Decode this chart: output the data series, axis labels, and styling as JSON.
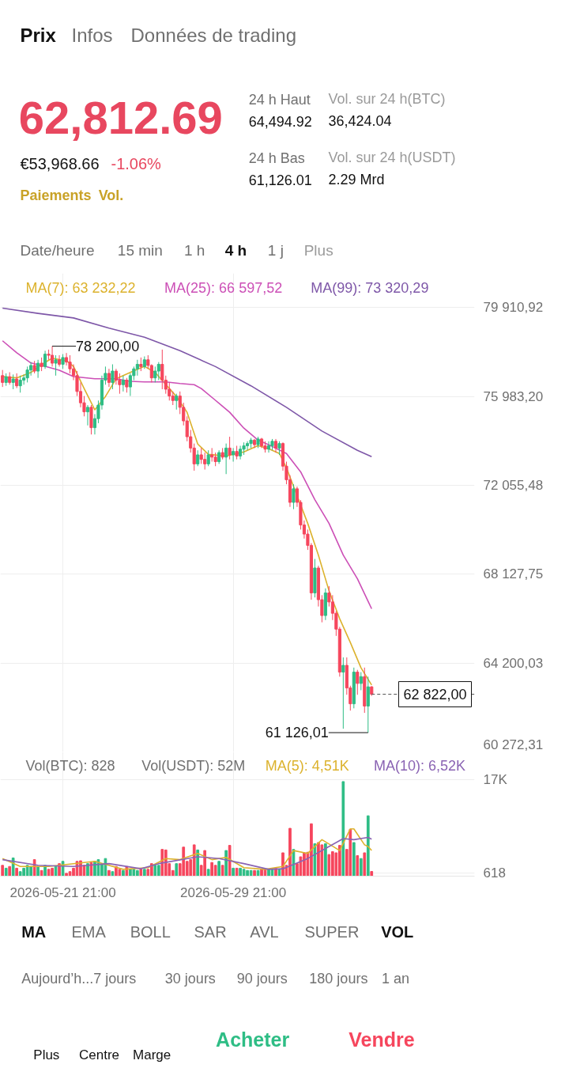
{
  "chart_data": [
    {
      "type": "other",
      "annotations": [
        "Prix",
        "Infos",
        "Données de trading",
        "62,812.69",
        "€53,968.66",
        "-1.06%",
        "Paiements",
        "Vol.",
        "24 h Haut",
        "64,494.92",
        "Vol. sur 24 h(BTC)",
        "36,424.04",
        "24 h Bas",
        "61,126.01",
        "Vol. sur 24 h(USDT)",
        "2.29 Mrd",
        "Date/heure",
        "15 min",
        "1 h",
        "4 h",
        "1 j",
        "Plus"
      ]
    },
    {
      "type": "candlestick",
      "x": [
        "2026-05-19T01:00",
        "2026-05-19T05:00",
        "2026-05-19T09:00",
        "2026-05-19T13:00",
        "2026-05-19T17:00",
        "2026-05-19T21:00",
        "2026-05-20T01:00",
        "2026-05-20T05:00",
        "2026-05-20T09:00",
        "2026-05-20T13:00",
        "2026-05-20T17:00",
        "2026-05-20T21:00",
        "2026-05-21T01:00",
        "2026-05-21T05:00",
        "2026-05-21T09:00",
        "2026-05-21T13:00",
        "2026-05-21T17:00",
        "2026-05-21T21:00",
        "2026-05-22T01:00",
        "2026-05-22T05:00",
        "2026-05-22T09:00",
        "2026-05-22T13:00",
        "2026-05-22T17:00",
        "2026-05-22T21:00",
        "2026-05-23T01:00",
        "2026-05-23T05:00",
        "2026-05-23T09:00",
        "2026-05-23T13:00",
        "2026-05-23T17:00",
        "2026-05-23T21:00",
        "2026-05-24T01:00",
        "2026-05-24T05:00",
        "2026-05-24T09:00",
        "2026-05-24T13:00",
        "2026-05-24T17:00",
        "2026-05-24T21:00",
        "2026-05-25T01:00",
        "2026-05-25T05:00",
        "2026-05-25T09:00",
        "2026-05-25T13:00",
        "2026-05-25T17:00",
        "2026-05-25T21:00",
        "2026-05-26T01:00",
        "2026-05-26T05:00",
        "2026-05-26T09:00",
        "2026-05-26T13:00",
        "2026-05-26T17:00",
        "2026-05-26T21:00",
        "2026-05-27T01:00",
        "2026-05-27T05:00",
        "2026-05-27T09:00",
        "2026-05-27T13:00",
        "2026-05-27T17:00",
        "2026-05-27T21:00",
        "2026-05-28T01:00",
        "2026-05-28T05:00",
        "2026-05-28T09:00",
        "2026-05-28T13:00",
        "2026-05-28T17:00",
        "2026-05-28T21:00",
        "2026-05-29T01:00",
        "2026-05-29T05:00",
        "2026-05-29T09:00",
        "2026-05-29T13:00",
        "2026-05-29T17:00",
        "2026-05-29T21:00",
        "2026-05-30T01:00",
        "2026-05-30T05:00",
        "2026-05-30T09:00",
        "2026-05-30T13:00",
        "2026-05-30T17:00",
        "2026-05-30T21:00",
        "2026-05-31T01:00",
        "2026-05-31T05:00",
        "2026-05-31T09:00",
        "2026-05-31T13:00",
        "2026-05-31T17:00",
        "2026-05-31T21:00",
        "2026-06-01T01:00",
        "2026-06-01T05:00",
        "2026-06-01T09:00",
        "2026-06-01T13:00",
        "2026-06-01T17:00",
        "2026-06-01T21:00",
        "2026-06-02T01:00",
        "2026-06-02T05:00",
        "2026-06-02T09:00",
        "2026-06-02T13:00",
        "2026-06-02T17:00",
        "2026-06-02T21:00",
        "2026-06-03T01:00",
        "2026-06-03T05:00",
        "2026-06-03T09:00",
        "2026-06-03T13:00",
        "2026-06-03T17:00",
        "2026-06-03T21:00",
        "2026-06-04T01:00",
        "2026-06-04T05:00",
        "2026-06-04T09:00",
        "2026-06-04T13:00",
        "2026-06-04T17:00",
        "2026-06-04T21:00",
        "2026-06-05T01:00",
        "2026-06-05T05:00",
        "2026-06-05T09:00"
      ],
      "ohlc": [
        [
          76900,
          77150,
          76400,
          76600
        ],
        [
          76600,
          77000,
          76450,
          76850
        ],
        [
          76850,
          77050,
          76500,
          76600
        ],
        [
          76600,
          76950,
          76300,
          76750
        ],
        [
          76750,
          77000,
          76350,
          76450
        ],
        [
          76450,
          76900,
          76150,
          76700
        ],
        [
          76700,
          76950,
          76500,
          76800
        ],
        [
          76800,
          77300,
          76600,
          77150
        ],
        [
          77150,
          77500,
          76900,
          77350
        ],
        [
          77350,
          77550,
          77000,
          77100
        ],
        [
          77100,
          77600,
          76800,
          77450
        ],
        [
          77450,
          77700,
          77100,
          77300
        ],
        [
          77300,
          78000,
          77200,
          77850
        ],
        [
          77850,
          78050,
          77600,
          77800
        ],
        [
          77800,
          78200,
          77300,
          77450
        ],
        [
          77450,
          77800,
          76900,
          77600
        ],
        [
          77600,
          77800,
          77300,
          77400
        ],
        [
          77400,
          77850,
          77200,
          77700
        ],
        [
          77700,
          77900,
          77350,
          77500
        ],
        [
          77500,
          77800,
          77000,
          77200
        ],
        [
          77200,
          77400,
          76700,
          76900
        ],
        [
          76900,
          77100,
          76000,
          76200
        ],
        [
          76200,
          76600,
          75500,
          75700
        ],
        [
          75700,
          76000,
          75100,
          75300
        ],
        [
          75300,
          75600,
          74700,
          75500
        ],
        [
          75500,
          75600,
          74300,
          74600
        ],
        [
          74600,
          75200,
          74300,
          75000
        ],
        [
          75000,
          75800,
          74800,
          75600
        ],
        [
          75600,
          76900,
          75400,
          76700
        ],
        [
          76700,
          77300,
          76500,
          77000
        ],
        [
          77000,
          77200,
          76400,
          76600
        ],
        [
          76600,
          77400,
          76300,
          77100
        ],
        [
          77100,
          77200,
          76500,
          76700
        ],
        [
          76700,
          77000,
          76100,
          76500
        ],
        [
          76500,
          76900,
          76200,
          76700
        ],
        [
          76700,
          76800,
          76150,
          76400
        ],
        [
          76400,
          77000,
          76000,
          76900
        ],
        [
          76900,
          77300,
          76700,
          77200
        ],
        [
          77200,
          77600,
          76900,
          77400
        ],
        [
          77400,
          77700,
          77100,
          77300
        ],
        [
          77300,
          77750,
          77200,
          77600
        ],
        [
          77600,
          77800,
          77200,
          77350
        ],
        [
          77350,
          77400,
          76600,
          76800
        ],
        [
          76800,
          77300,
          76600,
          77100
        ],
        [
          77100,
          77500,
          76700,
          77400
        ],
        [
          77400,
          78050,
          76300,
          76700
        ],
        [
          76700,
          76900,
          76100,
          76300
        ],
        [
          76300,
          76600,
          75800,
          76000
        ],
        [
          76000,
          76200,
          75600,
          75800
        ],
        [
          75800,
          76100,
          75400,
          76000
        ],
        [
          76000,
          76200,
          75200,
          75500
        ],
        [
          75500,
          75700,
          74700,
          74900
        ],
        [
          74900,
          75100,
          74000,
          74200
        ],
        [
          74200,
          74500,
          73500,
          73700
        ],
        [
          73700,
          73900,
          72700,
          73000
        ],
        [
          73000,
          73600,
          72900,
          73400
        ],
        [
          73400,
          73700,
          73000,
          73200
        ],
        [
          73200,
          73500,
          72750,
          73000
        ],
        [
          73000,
          73600,
          72900,
          73400
        ],
        [
          73400,
          73700,
          73100,
          73300
        ],
        [
          73300,
          73500,
          72900,
          73100
        ],
        [
          73100,
          73600,
          73000,
          73500
        ],
        [
          73500,
          73700,
          73200,
          73300
        ],
        [
          73300,
          73900,
          72550,
          73700
        ],
        [
          73700,
          74200,
          73200,
          73400
        ],
        [
          73400,
          73700,
          73100,
          73550
        ],
        [
          73550,
          73800,
          73200,
          73350
        ],
        [
          73350,
          73800,
          73200,
          73650
        ],
        [
          73650,
          73950,
          73400,
          73800
        ],
        [
          73800,
          74000,
          73600,
          73900
        ],
        [
          73900,
          74150,
          73700,
          74050
        ],
        [
          74050,
          74100,
          73700,
          73850
        ],
        [
          73850,
          74200,
          73700,
          74100
        ],
        [
          74100,
          74150,
          73700,
          73800
        ],
        [
          73800,
          74000,
          73500,
          73650
        ],
        [
          73650,
          74000,
          73500,
          73800
        ],
        [
          73800,
          74100,
          73600,
          74000
        ],
        [
          74000,
          74100,
          73500,
          73700
        ],
        [
          73700,
          74000,
          73400,
          73900
        ],
        [
          73900,
          73950,
          72700,
          72900
        ],
        [
          72900,
          73100,
          72100,
          72300
        ],
        [
          72300,
          72500,
          71100,
          71300
        ],
        [
          71300,
          72100,
          71000,
          71900
        ],
        [
          71900,
          72000,
          71100,
          71300
        ],
        [
          71300,
          71400,
          70100,
          70300
        ],
        [
          70300,
          70500,
          69700,
          69900
        ],
        [
          69900,
          70100,
          69200,
          69400
        ],
        [
          69400,
          69500,
          67000,
          67300
        ],
        [
          67300,
          68800,
          67100,
          68400
        ],
        [
          68400,
          68500,
          66700,
          67000
        ],
        [
          67000,
          67200,
          66000,
          66300
        ],
        [
          66300,
          67500,
          66100,
          67300
        ],
        [
          67300,
          67600,
          66700,
          66900
        ],
        [
          66900,
          67200,
          66100,
          66400
        ],
        [
          66400,
          66500,
          65400,
          65700
        ],
        [
          65700,
          65800,
          63600,
          63800
        ],
        [
          63800,
          64450,
          61300,
          64100
        ],
        [
          64100,
          64450,
          62800,
          63100
        ],
        [
          63100,
          63200,
          62100,
          62400
        ],
        [
          62400,
          64000,
          62200,
          63800
        ],
        [
          63800,
          63900,
          62800,
          63300
        ],
        [
          63300,
          63800,
          63000,
          63600
        ],
        [
          63600,
          64000,
          62000,
          62300
        ],
        [
          62300,
          63600,
          61126.01,
          63150
        ],
        [
          63150,
          63180,
          62750,
          62822
        ]
      ],
      "colors": [
        "#f6465d",
        "#2ebd85",
        "#f6465d",
        "#2ebd85",
        "#f6465d",
        "#2ebd85",
        "#2ebd85",
        "#2ebd85",
        "#2ebd85",
        "#f6465d",
        "#2ebd85",
        "#f6465d",
        "#2ebd85",
        "#f6465d",
        "#f6465d",
        "#2ebd85",
        "#f6465d",
        "#2ebd85",
        "#f6465d",
        "#f6465d",
        "#f6465d",
        "#f6465d",
        "#f6465d",
        "#f6465d",
        "#2ebd85",
        "#f6465d",
        "#2ebd85",
        "#2ebd85",
        "#2ebd85",
        "#2ebd85",
        "#f6465d",
        "#2ebd85",
        "#f6465d",
        "#f6465d",
        "#2ebd85",
        "#f6465d",
        "#2ebd85",
        "#2ebd85",
        "#2ebd85",
        "#f6465d",
        "#2ebd85",
        "#f6465d",
        "#f6465d",
        "#2ebd85",
        "#2ebd85",
        "#f6465d",
        "#f6465d",
        "#f6465d",
        "#f6465d",
        "#2ebd85",
        "#f6465d",
        "#f6465d",
        "#f6465d",
        "#f6465d",
        "#f6465d",
        "#2ebd85",
        "#f6465d",
        "#f6465d",
        "#2ebd85",
        "#f6465d",
        "#f6465d",
        "#2ebd85",
        "#f6465d",
        "#2ebd85",
        "#f6465d",
        "#2ebd85",
        "#f6465d",
        "#2ebd85",
        "#2ebd85",
        "#2ebd85",
        "#2ebd85",
        "#f6465d",
        "#2ebd85",
        "#f6465d",
        "#f6465d",
        "#2ebd85",
        "#2ebd85",
        "#f6465d",
        "#2ebd85",
        "#f6465d",
        "#f6465d",
        "#f6465d",
        "#2ebd85",
        "#f6465d",
        "#f6465d",
        "#f6465d",
        "#f6465d",
        "#f6465d",
        "#2ebd85",
        "#f6465d",
        "#f6465d",
        "#2ebd85",
        "#f6465d",
        "#f6465d",
        "#f6465d",
        "#f6465d",
        "#2ebd85",
        "#f6465d",
        "#f6465d",
        "#2ebd85",
        "#f6465d",
        "#2ebd85",
        "#f6465d",
        "#2ebd85",
        "#f6465d"
      ],
      "series": [
        {
          "name": "MA(7): 63 232,22",
          "type": "line",
          "color": "#dcb22d",
          "x": [
            "2026-05-19T01:00",
            "2026-05-19T17:00",
            "2026-05-20T09:00",
            "2026-05-20T21:00",
            "2026-05-21T09:00",
            "2026-05-22T01:00",
            "2026-05-22T09:00",
            "2026-05-22T21:00",
            "2026-05-23T09:00",
            "2026-05-23T21:00",
            "2026-05-24T09:00",
            "2026-05-25T05:00",
            "2026-05-25T17:00",
            "2026-05-26T05:00",
            "2026-05-26T17:00",
            "2026-05-27T05:00",
            "2026-05-27T17:00",
            "2026-05-28T05:00",
            "2026-05-28T17:00",
            "2026-05-29T13:00",
            "2026-05-30T09:00",
            "2026-05-31T01:00",
            "2026-05-31T13:00",
            "2026-06-01T01:00",
            "2026-06-01T09:00",
            "2026-06-01T21:00",
            "2026-06-02T09:00",
            "2026-06-02T21:00",
            "2026-06-03T09:00",
            "2026-06-03T21:00",
            "2026-06-04T09:00",
            "2026-06-04T21:00",
            "2026-06-05T09:00"
          ],
          "values": [
            76860,
            76800,
            77040,
            77390,
            77670,
            77560,
            77310,
            76330,
            75390,
            75980,
            76760,
            77110,
            77310,
            77040,
            76510,
            75980,
            75280,
            73880,
            73420,
            73350,
            73530,
            73810,
            73670,
            73460,
            72830,
            71600,
            70370,
            68970,
            67390,
            66160,
            65110,
            63990,
            63230
          ]
        },
        {
          "name": "MA(25): 66 597,52",
          "type": "line",
          "color": "#cc4fb6",
          "x": [
            "2026-05-19T01:00",
            "2026-05-19T17:00",
            "2026-05-20T09:00",
            "2026-05-21T01:00",
            "2026-05-21T17:00",
            "2026-05-22T09:00",
            "2026-05-23T09:00",
            "2026-05-24T09:00",
            "2026-05-25T01:00",
            "2026-05-25T17:00",
            "2026-05-26T17:00",
            "2026-05-27T09:00",
            "2026-05-28T01:00",
            "2026-05-28T09:00",
            "2026-05-29T01:00",
            "2026-05-29T17:00",
            "2026-05-30T09:00",
            "2026-05-31T01:00",
            "2026-05-31T17:00",
            "2026-06-01T09:00",
            "2026-06-02T01:00",
            "2026-06-02T17:00",
            "2026-06-03T09:00",
            "2026-06-04T01:00",
            "2026-06-04T17:00",
            "2026-06-05T09:00"
          ],
          "values": [
            78440,
            77910,
            77460,
            77310,
            77140,
            76860,
            76760,
            76760,
            76650,
            76620,
            76620,
            76550,
            76500,
            76330,
            75810,
            75280,
            74580,
            74050,
            73770,
            73460,
            72650,
            71420,
            70370,
            68970,
            67920,
            66600
          ]
        },
        {
          "name": "MA(99): 73 320,29",
          "type": "line",
          "color": "#7e57a8",
          "x": [
            "2026-05-19T01:00",
            "2026-05-20T17:00",
            "2026-05-22T09:00",
            "2026-05-24T01:00",
            "2026-05-25T17:00",
            "2026-05-27T09:00",
            "2026-05-29T01:00",
            "2026-05-30T17:00",
            "2026-06-01T09:00",
            "2026-06-03T01:00",
            "2026-06-04T17:00",
            "2026-06-05T09:00"
          ],
          "values": [
            79880,
            79650,
            79450,
            79000,
            78600,
            78000,
            77300,
            76450,
            75500,
            74450,
            73600,
            73320
          ]
        }
      ],
      "xlim": [
        "2026-05-18T22:36",
        "2026-06-10T05:00"
      ],
      "ylim": [
        60272.31,
        81420
      ],
      "xticks": [
        {
          "value": "2026-05-21T21:00",
          "label": null
        },
        {
          "value": "2026-05-29T21:00",
          "label": null
        }
      ],
      "yticks": [
        {
          "value": 79910.92,
          "label": "79 910,92"
        },
        {
          "value": 75983.2,
          "label": "75 983,20"
        },
        {
          "value": 72055.48,
          "label": "72 055,48"
        },
        {
          "value": 68127.75,
          "label": "68 127,75"
        },
        {
          "value": 64200.03,
          "label": "64 200,03"
        },
        {
          "value": 60272.31,
          "label": "60 272,31"
        }
      ],
      "tick_labels": "y",
      "grid": true,
      "annotations": [
        {
          "text": "78 200,00",
          "x": "2026-05-21T09:00",
          "y": 78200
        },
        {
          "text": "61 126,01",
          "x": "2026-06-05T05:00",
          "y": 61126.01
        }
      ],
      "ref_lines": [
        {
          "axis": "y",
          "value": 62822,
          "label": "62 822,00",
          "line_style": "dashed"
        }
      ]
    },
    {
      "type": "bar",
      "x": [
        "2026-05-19T01:00",
        "2026-05-19T05:00",
        "2026-05-19T09:00",
        "2026-05-19T13:00",
        "2026-05-19T17:00",
        "2026-05-19T21:00",
        "2026-05-20T01:00",
        "2026-05-20T05:00",
        "2026-05-20T09:00",
        "2026-05-20T13:00",
        "2026-05-20T17:00",
        "2026-05-20T21:00",
        "2026-05-21T01:00",
        "2026-05-21T05:00",
        "2026-05-21T09:00",
        "2026-05-21T13:00",
        "2026-05-21T17:00",
        "2026-05-21T21:00",
        "2026-05-22T01:00",
        "2026-05-22T05:00",
        "2026-05-22T09:00",
        "2026-05-22T13:00",
        "2026-05-22T17:00",
        "2026-05-22T21:00",
        "2026-05-23T01:00",
        "2026-05-23T05:00",
        "2026-05-23T09:00",
        "2026-05-23T13:00",
        "2026-05-23T17:00",
        "2026-05-23T21:00",
        "2026-05-24T01:00",
        "2026-05-24T05:00",
        "2026-05-24T09:00",
        "2026-05-24T13:00",
        "2026-05-24T17:00",
        "2026-05-24T21:00",
        "2026-05-25T01:00",
        "2026-05-25T05:00",
        "2026-05-25T09:00",
        "2026-05-25T13:00",
        "2026-05-25T17:00",
        "2026-05-25T21:00",
        "2026-05-26T01:00",
        "2026-05-26T05:00",
        "2026-05-26T09:00",
        "2026-05-26T13:00",
        "2026-05-26T17:00",
        "2026-05-26T21:00",
        "2026-05-27T01:00",
        "2026-05-27T05:00",
        "2026-05-27T09:00",
        "2026-05-27T13:00",
        "2026-05-27T17:00",
        "2026-05-27T21:00",
        "2026-05-28T01:00",
        "2026-05-28T05:00",
        "2026-05-28T09:00",
        "2026-05-28T13:00",
        "2026-05-28T17:00",
        "2026-05-28T21:00",
        "2026-05-29T01:00",
        "2026-05-29T05:00",
        "2026-05-29T09:00",
        "2026-05-29T13:00",
        "2026-05-29T17:00",
        "2026-05-29T21:00",
        "2026-05-30T01:00",
        "2026-05-30T05:00",
        "2026-05-30T09:00",
        "2026-05-30T13:00",
        "2026-05-30T17:00",
        "2026-05-30T21:00",
        "2026-05-31T01:00",
        "2026-05-31T05:00",
        "2026-05-31T09:00",
        "2026-05-31T13:00",
        "2026-05-31T17:00",
        "2026-05-31T21:00",
        "2026-06-01T01:00",
        "2026-06-01T05:00",
        "2026-06-01T09:00",
        "2026-06-01T13:00",
        "2026-06-01T17:00",
        "2026-06-01T21:00",
        "2026-06-02T01:00",
        "2026-06-02T05:00",
        "2026-06-02T09:00",
        "2026-06-02T13:00",
        "2026-06-02T17:00",
        "2026-06-02T21:00",
        "2026-06-03T01:00",
        "2026-06-03T05:00",
        "2026-06-03T09:00",
        "2026-06-03T13:00",
        "2026-06-03T17:00",
        "2026-06-03T21:00",
        "2026-06-04T01:00",
        "2026-06-04T05:00",
        "2026-06-04T09:00",
        "2026-06-04T13:00",
        "2026-06-04T17:00",
        "2026-06-04T21:00",
        "2026-06-05T01:00",
        "2026-06-05T05:00",
        "2026-06-05T09:00"
      ],
      "values": [
        1900,
        1400,
        1700,
        3200,
        1400,
        800,
        1400,
        1900,
        1700,
        2900,
        1700,
        1000,
        1900,
        1200,
        1400,
        1700,
        2200,
        2600,
        500,
        800,
        1400,
        2600,
        2700,
        1900,
        2200,
        2400,
        2600,
        2900,
        2200,
        3100,
        1000,
        800,
        1700,
        1200,
        1000,
        1700,
        1200,
        1200,
        1000,
        1200,
        1200,
        1200,
        2200,
        1900,
        1900,
        4700,
        4600,
        2200,
        1000,
        2200,
        2200,
        5100,
        2600,
        2900,
        5500,
        4600,
        1900,
        4500,
        1200,
        2400,
        1900,
        2600,
        1900,
        4500,
        5400,
        1400,
        1400,
        1400,
        1200,
        1000,
        1000,
        1000,
        1000,
        1200,
        1200,
        1200,
        1200,
        1400,
        1200,
        4100,
        1900,
        8400,
        4700,
        2200,
        3400,
        4100,
        4200,
        9200,
        5700,
        5900,
        5500,
        5700,
        3800,
        4300,
        4100,
        5400,
        16600,
        4700,
        8200,
        5900,
        3600,
        3100,
        4100,
        10600,
        828
      ],
      "colors": [
        "#f6465d",
        "#2ebd85",
        "#f6465d",
        "#2ebd85",
        "#f6465d",
        "#2ebd85",
        "#2ebd85",
        "#2ebd85",
        "#2ebd85",
        "#f6465d",
        "#2ebd85",
        "#f6465d",
        "#2ebd85",
        "#f6465d",
        "#f6465d",
        "#2ebd85",
        "#f6465d",
        "#2ebd85",
        "#f6465d",
        "#f6465d",
        "#f6465d",
        "#f6465d",
        "#f6465d",
        "#f6465d",
        "#2ebd85",
        "#f6465d",
        "#2ebd85",
        "#2ebd85",
        "#2ebd85",
        "#2ebd85",
        "#f6465d",
        "#2ebd85",
        "#f6465d",
        "#f6465d",
        "#2ebd85",
        "#f6465d",
        "#2ebd85",
        "#2ebd85",
        "#2ebd85",
        "#f6465d",
        "#2ebd85",
        "#f6465d",
        "#f6465d",
        "#2ebd85",
        "#2ebd85",
        "#f6465d",
        "#f6465d",
        "#f6465d",
        "#f6465d",
        "#2ebd85",
        "#f6465d",
        "#f6465d",
        "#f6465d",
        "#f6465d",
        "#f6465d",
        "#2ebd85",
        "#f6465d",
        "#f6465d",
        "#2ebd85",
        "#f6465d",
        "#f6465d",
        "#2ebd85",
        "#f6465d",
        "#2ebd85",
        "#f6465d",
        "#2ebd85",
        "#f6465d",
        "#2ebd85",
        "#2ebd85",
        "#2ebd85",
        "#2ebd85",
        "#f6465d",
        "#2ebd85",
        "#f6465d",
        "#f6465d",
        "#2ebd85",
        "#2ebd85",
        "#f6465d",
        "#2ebd85",
        "#f6465d",
        "#f6465d",
        "#f6465d",
        "#2ebd85",
        "#f6465d",
        "#f6465d",
        "#f6465d",
        "#f6465d",
        "#f6465d",
        "#2ebd85",
        "#f6465d",
        "#f6465d",
        "#2ebd85",
        "#f6465d",
        "#f6465d",
        "#f6465d",
        "#f6465d",
        "#2ebd85",
        "#f6465d",
        "#f6465d",
        "#2ebd85",
        "#f6465d",
        "#2ebd85",
        "#f6465d",
        "#2ebd85",
        "#f6465d"
      ],
      "series": [
        {
          "name": "MA(5): 4,51K",
          "type": "line",
          "color": "#dcb22d",
          "x": [
            "2026-05-19T01:00",
            "2026-05-19T21:00",
            "2026-05-21T05:00",
            "2026-05-23T09:00",
            "2026-05-24T17:00",
            "2026-05-25T21:00",
            "2026-05-26T17:00",
            "2026-05-27T09:00",
            "2026-05-28T05:00",
            "2026-05-28T21:00",
            "2026-05-29T13:00",
            "2026-05-30T09:00",
            "2026-05-31T09:00",
            "2026-06-01T05:00",
            "2026-06-01T17:00",
            "2026-06-02T09:00",
            "2026-06-03T01:00",
            "2026-06-03T21:00",
            "2026-06-04T09:00",
            "2026-06-04T13:00",
            "2026-06-05T01:00",
            "2026-06-05T05:00",
            "2026-06-05T09:00"
          ],
          "values": [
            3100,
            1700,
            1700,
            2600,
            1200,
            1500,
            3100,
            2900,
            4000,
            2900,
            3300,
            1500,
            1200,
            1700,
            4500,
            4000,
            6400,
            4500,
            8300,
            8300,
            5500,
            5200,
            4500
          ]
        },
        {
          "name": "MA(10): 6,52K",
          "type": "line",
          "color": "#8a63b3",
          "x": [
            "2026-05-19T01:00",
            "2026-05-20T17:00",
            "2026-05-22T09:00",
            "2026-05-24T01:00",
            "2026-05-25T13:00",
            "2026-05-26T09:00",
            "2026-05-28T05:00",
            "2026-05-29T05:00",
            "2026-05-30T09:00",
            "2026-05-31T13:00",
            "2026-06-01T05:00",
            "2026-06-02T09:00",
            "2026-06-03T09:00",
            "2026-06-04T01:00",
            "2026-06-04T13:00",
            "2026-06-05T05:00",
            "2026-06-05T09:00"
          ],
          "values": [
            2900,
            1900,
            1700,
            2200,
            1300,
            2200,
            3400,
            3100,
            2200,
            1200,
            1300,
            3100,
            5200,
            6600,
            6400,
            6800,
            6500
          ]
        }
      ],
      "xlim": [
        "2026-05-18T22:36",
        "2026-06-10T05:00"
      ],
      "ylim": [
        0,
        21800
      ],
      "xticks": [
        {
          "value": "2026-05-21T21:00",
          "label": "2026-05-21 21:00"
        },
        {
          "value": "2026-05-29T21:00",
          "label": "2026-05-29 21:00"
        }
      ],
      "yticks": [
        {
          "value": 17000,
          "label": "17K"
        },
        618
      ],
      "grid": true,
      "annotations": [
        "Vol(BTC): 828",
        "Vol(USDT): 52M"
      ]
    },
    {
      "type": "other",
      "annotations": [
        "MA",
        "EMA",
        "BOLL",
        "SAR",
        "AVL",
        "SUPER",
        "VOL",
        "Aujourd’h...7 jours",
        "30 jours",
        "90 jours",
        "180 jours",
        "1 an",
        "Plus",
        "Centre",
        "Marge",
        "Acheter",
        "Vendre"
      ]
    }
  ]
}
